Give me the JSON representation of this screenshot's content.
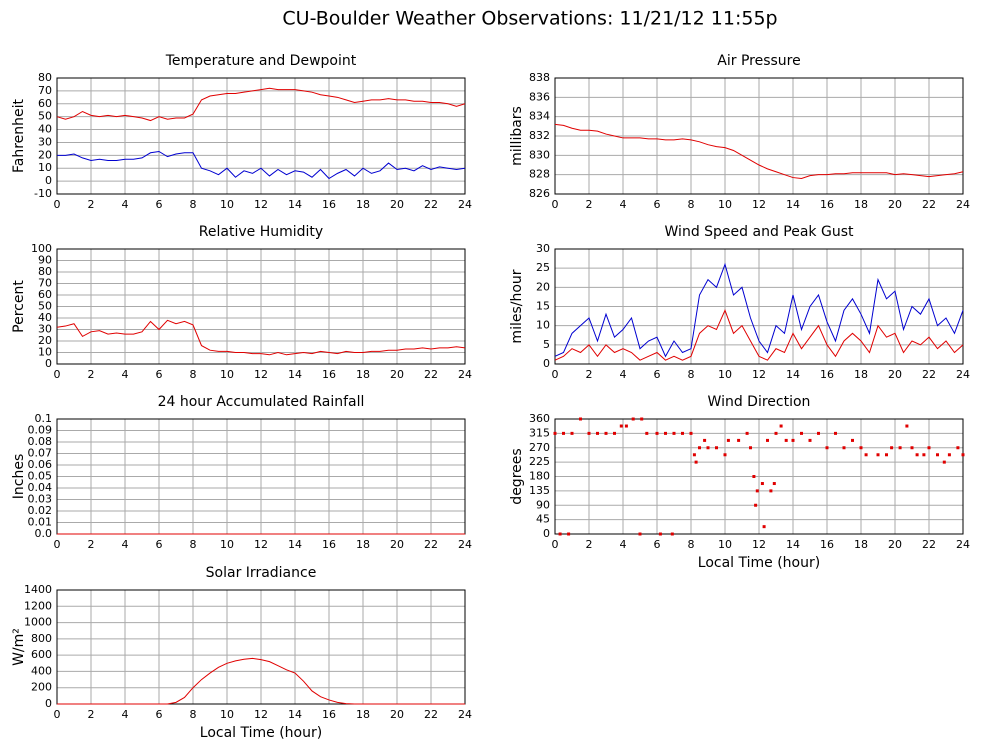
{
  "title": "CU-Boulder Weather Observations: 11/21/12 11:55p",
  "chart_data": [
    {
      "type": "line",
      "title": "Temperature and Dewpoint",
      "ylabel": "Fahrenheit",
      "x": [
        0,
        0.5,
        1,
        1.5,
        2,
        2.5,
        3,
        3.5,
        4,
        4.5,
        5,
        5.5,
        6,
        6.5,
        7,
        7.5,
        8,
        8.5,
        9,
        9.5,
        10,
        10.5,
        11,
        11.5,
        12,
        12.5,
        13,
        13.5,
        14,
        14.5,
        15,
        15.5,
        16,
        16.5,
        17,
        17.5,
        18,
        18.5,
        19,
        19.5,
        20,
        20.5,
        21,
        21.5,
        22,
        22.5,
        23,
        23.5,
        24
      ],
      "series": [
        {
          "color": "#e00000",
          "values": [
            50,
            48,
            50,
            54,
            51,
            50,
            51,
            50,
            51,
            50,
            49,
            47,
            50,
            48,
            49,
            49,
            52,
            63,
            66,
            67,
            68,
            68,
            69,
            70,
            71,
            72,
            71,
            71,
            71,
            70,
            69,
            67,
            66,
            65,
            63,
            61,
            62,
            63,
            63,
            64,
            63,
            63,
            62,
            62,
            61,
            61,
            60,
            58,
            60
          ]
        },
        {
          "color": "#0000d0",
          "values": [
            20,
            20,
            21,
            18,
            16,
            17,
            16,
            16,
            17,
            17,
            18,
            22,
            23,
            19,
            21,
            22,
            22,
            10,
            8,
            5,
            10,
            3,
            8,
            6,
            10,
            4,
            9,
            5,
            8,
            7,
            3,
            9,
            2,
            6,
            9,
            4,
            10,
            6,
            8,
            14,
            9,
            10,
            8,
            12,
            9,
            11,
            10,
            9,
            10
          ]
        }
      ],
      "xlim": [
        0,
        24
      ],
      "xticks": [
        0,
        2,
        4,
        6,
        8,
        10,
        12,
        14,
        16,
        18,
        20,
        22,
        24
      ],
      "ylim": [
        -10,
        80
      ],
      "yticks": [
        -10,
        0,
        10,
        20,
        30,
        40,
        50,
        60,
        70,
        80
      ],
      "grid": true
    },
    {
      "type": "line",
      "title": "Air Pressure",
      "ylabel": "millibars",
      "x": [
        0,
        0.5,
        1,
        1.5,
        2,
        2.5,
        3,
        3.5,
        4,
        4.5,
        5,
        5.5,
        6,
        6.5,
        7,
        7.5,
        8,
        8.5,
        9,
        9.5,
        10,
        10.5,
        11,
        11.5,
        12,
        12.5,
        13,
        13.5,
        14,
        14.5,
        15,
        15.5,
        16,
        16.5,
        17,
        17.5,
        18,
        18.5,
        19,
        19.5,
        20,
        20.5,
        21,
        21.5,
        22,
        22.5,
        23,
        23.5,
        24
      ],
      "series": [
        {
          "color": "#e00000",
          "values": [
            833.2,
            833.1,
            832.8,
            832.6,
            832.6,
            832.5,
            832.2,
            832.0,
            831.8,
            831.8,
            831.8,
            831.7,
            831.7,
            831.6,
            831.6,
            831.7,
            831.6,
            831.4,
            831.1,
            830.9,
            830.8,
            830.5,
            830.0,
            829.5,
            829.0,
            828.6,
            828.3,
            828.0,
            827.7,
            827.6,
            827.9,
            828.0,
            828.0,
            828.1,
            828.1,
            828.2,
            828.2,
            828.2,
            828.2,
            828.2,
            828.0,
            828.1,
            828.0,
            827.9,
            827.8,
            827.9,
            828.0,
            828.1,
            828.3
          ]
        }
      ],
      "xlim": [
        0,
        24
      ],
      "xticks": [
        0,
        2,
        4,
        6,
        8,
        10,
        12,
        14,
        16,
        18,
        20,
        22,
        24
      ],
      "ylim": [
        826,
        838
      ],
      "yticks": [
        826,
        828,
        830,
        832,
        834,
        836,
        838
      ],
      "grid": true
    },
    {
      "type": "line",
      "title": "Relative Humidity",
      "ylabel": "Percent",
      "x": [
        0,
        0.5,
        1,
        1.5,
        2,
        2.5,
        3,
        3.5,
        4,
        4.5,
        5,
        5.5,
        6,
        6.5,
        7,
        7.5,
        8,
        8.5,
        9,
        9.5,
        10,
        10.5,
        11,
        11.5,
        12,
        12.5,
        13,
        13.5,
        14,
        14.5,
        15,
        15.5,
        16,
        16.5,
        17,
        17.5,
        18,
        18.5,
        19,
        19.5,
        20,
        20.5,
        21,
        21.5,
        22,
        22.5,
        23,
        23.5,
        24
      ],
      "series": [
        {
          "color": "#e00000",
          "values": [
            32,
            33,
            35,
            24,
            28,
            29,
            26,
            27,
            26,
            26,
            28,
            37,
            30,
            38,
            35,
            37,
            34,
            16,
            12,
            11,
            11,
            10,
            10,
            9,
            9,
            8,
            10,
            8,
            9,
            10,
            9,
            11,
            10,
            9,
            11,
            10,
            10,
            11,
            11,
            12,
            12,
            13,
            13,
            14,
            13,
            14,
            14,
            15,
            14
          ]
        }
      ],
      "xlim": [
        0,
        24
      ],
      "xticks": [
        0,
        2,
        4,
        6,
        8,
        10,
        12,
        14,
        16,
        18,
        20,
        22,
        24
      ],
      "ylim": [
        0,
        100
      ],
      "yticks": [
        0,
        10,
        20,
        30,
        40,
        50,
        60,
        70,
        80,
        90,
        100
      ],
      "grid": true
    },
    {
      "type": "line",
      "title": "Wind Speed and Peak Gust",
      "ylabel": "miles/hour",
      "x": [
        0,
        0.5,
        1,
        1.5,
        2,
        2.5,
        3,
        3.5,
        4,
        4.5,
        5,
        5.5,
        6,
        6.5,
        7,
        7.5,
        8,
        8.5,
        9,
        9.5,
        10,
        10.5,
        11,
        11.5,
        12,
        12.5,
        13,
        13.5,
        14,
        14.5,
        15,
        15.5,
        16,
        16.5,
        17,
        17.5,
        18,
        18.5,
        19,
        19.5,
        20,
        20.5,
        21,
        21.5,
        22,
        22.5,
        23,
        23.5,
        24
      ],
      "series": [
        {
          "color": "#0000d0",
          "values": [
            2,
            3,
            8,
            10,
            12,
            6,
            13,
            7,
            9,
            12,
            4,
            6,
            7,
            2,
            6,
            3,
            4,
            18,
            22,
            20,
            26,
            18,
            20,
            12,
            6,
            3,
            10,
            8,
            18,
            9,
            15,
            18,
            11,
            6,
            14,
            17,
            13,
            8,
            22,
            17,
            19,
            9,
            15,
            13,
            17,
            10,
            12,
            8,
            14
          ]
        },
        {
          "color": "#e00000",
          "values": [
            1,
            2,
            4,
            3,
            5,
            2,
            5,
            3,
            4,
            3,
            1,
            2,
            3,
            1,
            2,
            1,
            2,
            8,
            10,
            9,
            14,
            8,
            10,
            6,
            2,
            1,
            4,
            3,
            8,
            4,
            7,
            10,
            5,
            2,
            6,
            8,
            6,
            3,
            10,
            7,
            8,
            3,
            6,
            5,
            7,
            4,
            6,
            3,
            5
          ]
        }
      ],
      "xlim": [
        0,
        24
      ],
      "xticks": [
        0,
        2,
        4,
        6,
        8,
        10,
        12,
        14,
        16,
        18,
        20,
        22,
        24
      ],
      "ylim": [
        0,
        30
      ],
      "yticks": [
        0,
        5,
        10,
        15,
        20,
        25,
        30
      ],
      "grid": true
    },
    {
      "type": "line",
      "title": "24 hour Accumulated Rainfall",
      "ylabel": "Inches",
      "x": [
        0,
        24
      ],
      "series": [
        {
          "color": "#e00000",
          "values": [
            0,
            0
          ]
        }
      ],
      "xlim": [
        0,
        24
      ],
      "xticks": [
        0,
        2,
        4,
        6,
        8,
        10,
        12,
        14,
        16,
        18,
        20,
        22,
        24
      ],
      "ylim": [
        0,
        0.1
      ],
      "yticks": [
        {
          "value": 0,
          "label": "0.0"
        },
        0.01,
        0.02,
        0.03,
        0.04,
        0.05,
        0.06,
        0.07,
        0.08,
        0.09,
        0.1
      ],
      "grid": true
    },
    {
      "type": "scatter",
      "title": "Wind Direction",
      "ylabel": "degrees",
      "xlabel": "Local Time (hour)",
      "x": [
        0,
        0.3,
        0.5,
        0.8,
        1,
        1.5,
        2,
        2.5,
        3,
        3.5,
        3.9,
        4.2,
        4.6,
        5,
        5.1,
        5.4,
        6,
        6.2,
        6.5,
        6.9,
        7,
        7.5,
        8,
        8.2,
        8.3,
        8.5,
        8.8,
        9,
        9.5,
        10,
        10.2,
        10.8,
        11.3,
        11.5,
        11.7,
        11.8,
        11.9,
        12.2,
        12.3,
        12.5,
        12.7,
        12.9,
        13,
        13.3,
        13.6,
        14,
        14.5,
        15,
        15.5,
        16,
        16.5,
        17,
        17.5,
        18,
        18.3,
        19,
        19.5,
        19.8,
        20.3,
        20.7,
        21,
        21.3,
        21.7,
        22,
        22.5,
        22.9,
        23.2,
        23.7,
        24
      ],
      "values": [
        315,
        0,
        315,
        0,
        315,
        360,
        315,
        315,
        315,
        315,
        338,
        338,
        360,
        0,
        360,
        315,
        315,
        0,
        315,
        0,
        315,
        315,
        315,
        248,
        225,
        270,
        293,
        270,
        270,
        248,
        293,
        293,
        315,
        270,
        180,
        90,
        135,
        158,
        23,
        293,
        135,
        158,
        315,
        338,
        293,
        293,
        315,
        293,
        315,
        270,
        315,
        270,
        293,
        270,
        248,
        248,
        248,
        270,
        270,
        338,
        270,
        248,
        248,
        270,
        248,
        225,
        248,
        270,
        248
      ],
      "color": "#e00000",
      "xlim": [
        0,
        24
      ],
      "xticks": [
        0,
        2,
        4,
        6,
        8,
        10,
        12,
        14,
        16,
        18,
        20,
        22,
        24
      ],
      "ylim": [
        0,
        360
      ],
      "yticks": [
        0,
        45,
        90,
        135,
        180,
        225,
        270,
        315,
        360
      ],
      "grid": true
    },
    {
      "type": "line",
      "title": "Solar Irradiance",
      "ylabel": "W/m²",
      "xlabel": "Local Time (hour)",
      "x": [
        0,
        0.5,
        1,
        1.5,
        2,
        2.5,
        3,
        3.5,
        4,
        4.5,
        5,
        5.5,
        6,
        6.5,
        7,
        7.5,
        8,
        8.5,
        9,
        9.5,
        10,
        10.5,
        11,
        11.5,
        12,
        12.5,
        13,
        13.5,
        14,
        14.5,
        15,
        15.5,
        16,
        16.5,
        17,
        17.5,
        18,
        18.5,
        19,
        19.5,
        20,
        20.5,
        21,
        21.5,
        22,
        22.5,
        23,
        23.5,
        24
      ],
      "series": [
        {
          "color": "#e00000",
          "values": [
            0,
            0,
            0,
            0,
            0,
            0,
            0,
            0,
            0,
            0,
            0,
            0,
            0,
            0,
            20,
            80,
            200,
            300,
            380,
            450,
            500,
            530,
            550,
            560,
            545,
            520,
            470,
            420,
            380,
            280,
            160,
            90,
            50,
            20,
            5,
            0,
            0,
            0,
            0,
            0,
            0,
            0,
            0,
            0,
            0,
            0,
            0,
            0,
            0
          ]
        }
      ],
      "xlim": [
        0,
        24
      ],
      "xticks": [
        0,
        2,
        4,
        6,
        8,
        10,
        12,
        14,
        16,
        18,
        20,
        22,
        24
      ],
      "ylim": [
        0,
        1400
      ],
      "yticks": [
        0,
        200,
        400,
        600,
        800,
        1000,
        1200,
        1400
      ],
      "grid": true
    }
  ]
}
